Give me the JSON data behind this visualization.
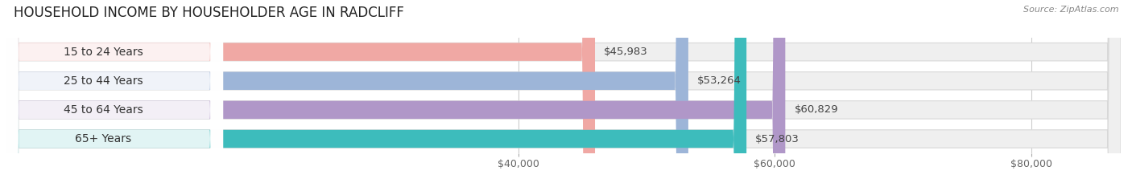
{
  "title": "HOUSEHOLD INCOME BY HOUSEHOLDER AGE IN RADCLIFF",
  "source": "Source: ZipAtlas.com",
  "categories": [
    "15 to 24 Years",
    "25 to 44 Years",
    "45 to 64 Years",
    "65+ Years"
  ],
  "values": [
    45983,
    53264,
    60829,
    57803
  ],
  "bar_colors": [
    "#f0a8a4",
    "#9db5d8",
    "#b097c8",
    "#3dbcbc"
  ],
  "bar_bg_color": "#efefef",
  "bar_border_color": "#d8d8d8",
  "value_labels": [
    "$45,983",
    "$53,264",
    "$60,829",
    "$57,803"
  ],
  "xmin": 0,
  "xmax": 87000,
  "xticks": [
    40000,
    60000,
    80000
  ],
  "xtick_labels": [
    "$40,000",
    "$60,000",
    "$80,000"
  ],
  "title_fontsize": 12,
  "source_fontsize": 8,
  "label_fontsize": 10,
  "value_fontsize": 9.5,
  "tick_fontsize": 9,
  "bar_height": 0.62,
  "background_color": "#ffffff",
  "grid_color": "#cccccc"
}
